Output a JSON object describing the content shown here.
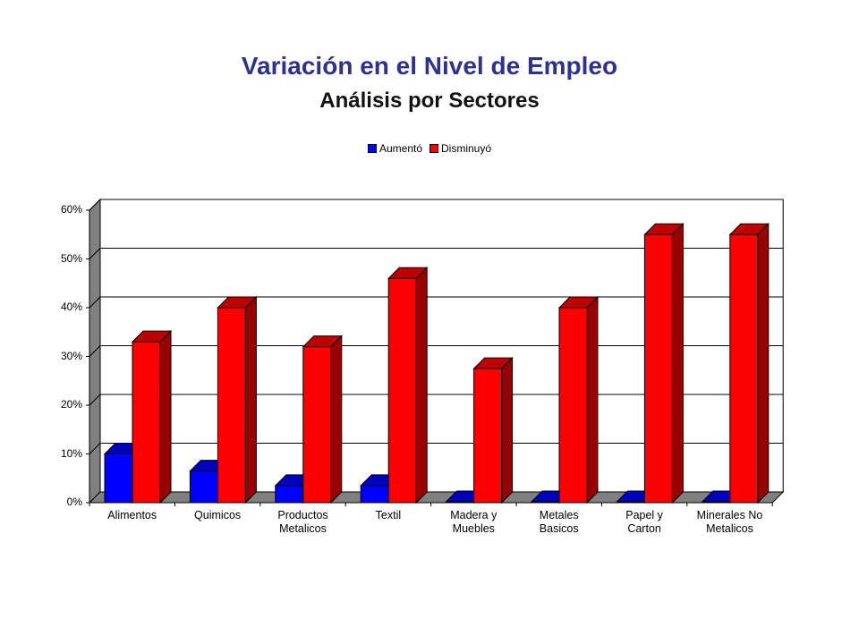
{
  "chart_data": {
    "type": "bar",
    "title": "Variación en el Nivel de Empleo",
    "subtitle": "Análisis por Sectores",
    "categories": [
      "Alimentos",
      "Quimicos",
      "Productos Metalicos",
      "Textil",
      "Madera y Muebles",
      "Metales Basicos",
      "Papel y Carton",
      "Minerales No Metalicos"
    ],
    "category_lines": [
      [
        "Alimentos"
      ],
      [
        "Quimicos"
      ],
      [
        "Productos",
        "Metalicos"
      ],
      [
        "Textil"
      ],
      [
        "Madera y",
        "Muebles"
      ],
      [
        "Metales",
        "Basicos"
      ],
      [
        "Papel y",
        "Carton"
      ],
      [
        "Minerales No",
        "Metalicos"
      ]
    ],
    "series": [
      {
        "name": "Aumentó",
        "color": "#0000ff",
        "values": [
          0.1,
          0.065,
          0.035,
          0.035,
          0.0,
          0.0,
          0.0,
          0.0
        ]
      },
      {
        "name": "Disminuyó",
        "color": "#ff0000",
        "values": [
          0.33,
          0.4,
          0.32,
          0.46,
          0.275,
          0.4,
          0.55,
          0.55
        ]
      }
    ],
    "ylim": [
      0,
      0.6
    ],
    "yticks": [
      "0%",
      "10%",
      "20%",
      "30%",
      "40%",
      "50%",
      "60%"
    ],
    "legend_position": "top-center",
    "grid": true,
    "style": "3d-bar"
  }
}
